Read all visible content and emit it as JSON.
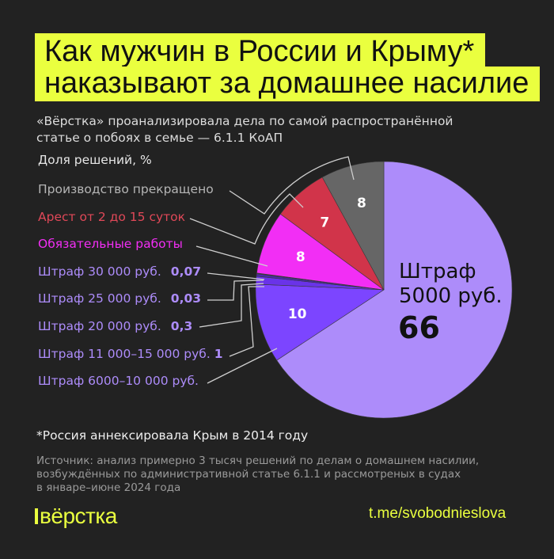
{
  "title": {
    "line1": "Как мужчин в России и Крыму*",
    "line2": "наказывают за домашнее насилие"
  },
  "subtitle": {
    "line1": "«Вёрстка» проанализировала дела по самой распространённой",
    "line2": "статье о побоях в семье — 6.1.1 КоАП"
  },
  "colors": {
    "background": "#222222",
    "accent": "#eaff3f"
  },
  "chart_data": {
    "type": "pie",
    "title": "Доля решений, %",
    "direction": "clockwise-from-top",
    "slices": [
      {
        "name": "Штраф 5000 руб.",
        "value": 66,
        "label": "66",
        "color": "#ad8cfa"
      },
      {
        "name": "Штраф 6000–10 000 руб.",
        "value": 10,
        "label": "10",
        "color": "#7c45ff"
      },
      {
        "name": "Штраф 11 000–15 000 руб.",
        "value": 1,
        "label": "1",
        "color": "#6a33e8"
      },
      {
        "name": "Штраф 20 000 руб.",
        "value": 0.3,
        "label": "0,3",
        "color": "#4a2aa8"
      },
      {
        "name": "Штраф 25 000 руб.",
        "value": 0.03,
        "label": "0,03",
        "color": "#ad8cfa"
      },
      {
        "name": "Штраф 30 000 руб.",
        "value": 0.07,
        "label": "0,07",
        "color": "#dddddd"
      },
      {
        "name": "Обязательные работы",
        "value": 8,
        "label": "8",
        "color": "#f22ef5"
      },
      {
        "name": "Арест от 2 до 15 суток",
        "value": 7,
        "label": "7",
        "color": "#d1344a"
      },
      {
        "name": "Производство прекращено",
        "value": 8,
        "label": "8",
        "color": "#666666"
      }
    ],
    "big_label": {
      "line1": "Штраф",
      "line2": "5000 руб.",
      "value": "66"
    }
  },
  "legend": [
    {
      "text": "Производство прекращено",
      "value": "",
      "color": "#b5b5b5"
    },
    {
      "text": "Арест от 2 до 15 суток",
      "value": "",
      "color": "#e04858"
    },
    {
      "text": "Обязательные работы",
      "value": "",
      "color": "#f22ef5"
    },
    {
      "text": "Штраф 30 000 руб.",
      "value": "0,07",
      "color": "#ad8cfa"
    },
    {
      "text": "Штраф 25 000 руб.",
      "value": "0,03",
      "color": "#ad8cfa"
    },
    {
      "text": "Штраф 20 000 руб.",
      "value": "0,3",
      "color": "#ad8cfa"
    },
    {
      "text": "Штраф 11 000–15 000 руб.",
      "value": "1",
      "color": "#ad8cfa"
    },
    {
      "text": "Штраф 6000–10 000 руб.",
      "value": "",
      "color": "#ad8cfa"
    }
  ],
  "footnote": "*Россия аннексировала Крым в 2014 году",
  "source": {
    "line1": "Источник: анализ примерно 3 тысяч решений по делам о домашнем насилии,",
    "line2": "возбуждённых по административной статье 6.1.1 и рассмотреных в судах",
    "line3": "в январе–июне 2024 года"
  },
  "logo": "вёрстка",
  "link": "t.me/svobodnieslova"
}
